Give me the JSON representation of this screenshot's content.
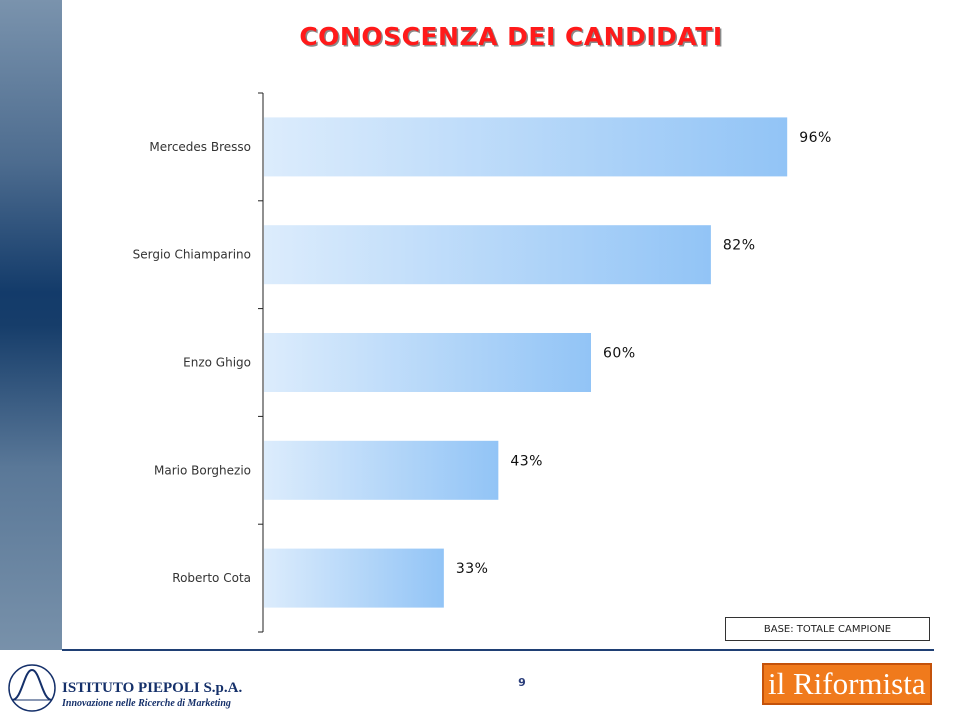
{
  "title": "CONOSCENZA DEI CANDIDATI",
  "base_note": "BASE: TOTALE CAMPIONE",
  "page_number": "9",
  "footer": {
    "left_logo_name": "ISTITUTO PIEPOLI S.p.A.",
    "left_logo_tagline": "Innovazione nelle Ricerche di Marketing",
    "right_logo_text": "il Riformista"
  },
  "colors": {
    "title": "#ff1a1a",
    "bar_start": "#dcecfc",
    "bar_end": "#92c4f6",
    "side_band": "#163d6a"
  },
  "chart_data": {
    "type": "bar",
    "orientation": "horizontal",
    "categories": [
      "Mercedes Bresso",
      "Sergio Chiamparino",
      "Enzo Ghigo",
      "Mario Borghezio",
      "Roberto Cota"
    ],
    "values": [
      96,
      82,
      60,
      43,
      33
    ],
    "value_labels": [
      "96%",
      "82%",
      "60%",
      "43%",
      "33%"
    ],
    "unit": "%",
    "xlim": [
      0,
      100
    ],
    "grid": false,
    "legend": "none"
  }
}
